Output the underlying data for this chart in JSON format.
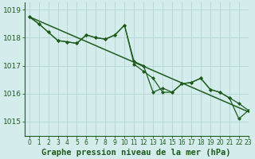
{
  "xlabel": "Graphe pression niveau de la mer (hPa)",
  "bg_color": "#d4ecec",
  "grid_color": "#b8d8d8",
  "line_color": "#1e5c1e",
  "xlim": [
    -0.5,
    23
  ],
  "ylim": [
    1014.5,
    1019.25
  ],
  "yticks": [
    1015,
    1016,
    1017,
    1018,
    1019
  ],
  "xticks": [
    0,
    1,
    2,
    3,
    4,
    5,
    6,
    7,
    8,
    9,
    10,
    11,
    12,
    13,
    14,
    15,
    16,
    17,
    18,
    19,
    20,
    21,
    22,
    23
  ],
  "series1_x": [
    0,
    1,
    2,
    3,
    4,
    5,
    6,
    7,
    8,
    9,
    10,
    11,
    12,
    13,
    14,
    15,
    16,
    17,
    18,
    19,
    20,
    21,
    22,
    23
  ],
  "series1_y": [
    1018.75,
    1018.5,
    1018.2,
    1017.9,
    1017.85,
    1017.8,
    1018.1,
    1018.0,
    1017.95,
    1018.1,
    1018.45,
    1017.15,
    1017.0,
    1016.05,
    1016.2,
    1016.05,
    1016.35,
    1016.4,
    1016.55,
    1016.15,
    1016.05,
    1015.85,
    1015.65,
    1015.4
  ],
  "series2_x": [
    0,
    1,
    2,
    3,
    4,
    5,
    6,
    7,
    8,
    9,
    10,
    11,
    12,
    13,
    14,
    15,
    16,
    17,
    18,
    19,
    20,
    21,
    22,
    23
  ],
  "series2_y": [
    1018.75,
    1018.5,
    1018.2,
    1017.9,
    1017.85,
    1017.8,
    1018.1,
    1018.0,
    1017.95,
    1018.1,
    1018.45,
    1017.05,
    1016.8,
    1016.55,
    1016.05,
    1016.05,
    1016.35,
    1016.4,
    1016.55,
    1016.15,
    1016.05,
    1015.85,
    1015.1,
    1015.4
  ],
  "trend_x": [
    0,
    23
  ],
  "trend_y": [
    1018.75,
    1015.35
  ],
  "font_color": "#1e5c1e",
  "xlabel_fontsize": 7.5,
  "tick_fontsize": 6.5
}
